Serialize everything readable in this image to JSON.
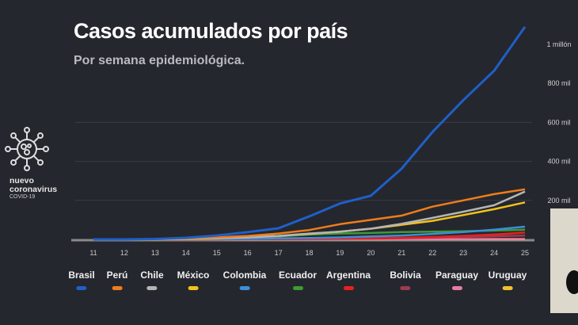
{
  "chart_data": {
    "type": "line",
    "title": "Casos acumulados por país",
    "subtitle": "Por semana epidemiológica.",
    "x": [
      11,
      12,
      13,
      14,
      15,
      16,
      17,
      18,
      19,
      20,
      21,
      22,
      23,
      24,
      25
    ],
    "x_tick_labels": [
      "11",
      "12",
      "13",
      "14",
      "15",
      "16",
      "17",
      "18",
      "19",
      "20",
      "21",
      "22",
      "23",
      "24",
      "25"
    ],
    "y_tick_labels": [
      "200 mil",
      "400 mil",
      "600 mil",
      "800 mil",
      "1 millón"
    ],
    "y_ticks": [
      200000,
      400000,
      600000,
      800000,
      1000000
    ],
    "ylim": [
      0,
      1100000
    ],
    "grid": true,
    "legend": "bottom",
    "series": [
      {
        "name": "Brasil",
        "color": "#1f5fc8",
        "values": [
          0,
          0,
          2000,
          8000,
          20000,
          37000,
          57000,
          118000,
          184000,
          224000,
          363000,
          551000,
          714000,
          865000,
          1090000
        ]
      },
      {
        "name": "Perú",
        "color": "#ef7d1a",
        "values": [
          0,
          0,
          1000,
          5000,
          10000,
          18000,
          30000,
          48000,
          78000,
          100000,
          122000,
          168000,
          200000,
          232000,
          257000
        ]
      },
      {
        "name": "Chile",
        "color": "#b5b5b5",
        "values": [
          0,
          0,
          1000,
          3000,
          6000,
          10000,
          18000,
          30000,
          40000,
          55000,
          80000,
          110000,
          142000,
          175000,
          245000
        ]
      },
      {
        "name": "México",
        "color": "#f2c318",
        "values": [
          0,
          0,
          0,
          2000,
          5000,
          12000,
          18000,
          28000,
          40000,
          55000,
          75000,
          95000,
          125000,
          155000,
          190000
        ]
      },
      {
        "name": "Colombia",
        "color": "#3b8fd8",
        "values": [
          0,
          0,
          0,
          1000,
          2000,
          3000,
          5000,
          7000,
          10000,
          15000,
          20000,
          28000,
          38000,
          50000,
          65000
        ]
      },
      {
        "name": "Ecuador",
        "color": "#3f9a34",
        "values": [
          0,
          0,
          0,
          1000,
          3000,
          6000,
          15000,
          25000,
          30000,
          33000,
          38000,
          40000,
          42000,
          45000,
          50000
        ]
      },
      {
        "name": "Argentina",
        "color": "#e8201f",
        "values": [
          0,
          0,
          0,
          0,
          1000,
          2000,
          3000,
          4000,
          6000,
          7000,
          8000,
          12000,
          18000,
          25000,
          35000
        ]
      },
      {
        "name": "Bolivia",
        "color": "#9b3b4f",
        "values": [
          0,
          0,
          0,
          0,
          0,
          1000,
          1000,
          2000,
          3000,
          4000,
          6000,
          9000,
          12000,
          16000,
          20000
        ]
      },
      {
        "name": "Paraguay",
        "color": "#e87ca0",
        "values": [
          0,
          0,
          0,
          0,
          0,
          0,
          0,
          0,
          0,
          1000,
          1000,
          1000,
          1000,
          2000,
          2000
        ]
      },
      {
        "name": "Uruguay",
        "color": "#f0c030",
        "values": [
          0,
          0,
          0,
          0,
          0,
          0,
          0,
          0,
          0,
          0,
          1000,
          1000,
          1000,
          1000,
          1000
        ]
      }
    ]
  },
  "logo": {
    "line1": "nuevo",
    "line2": "coronavirus",
    "line3": "COVID-19"
  }
}
